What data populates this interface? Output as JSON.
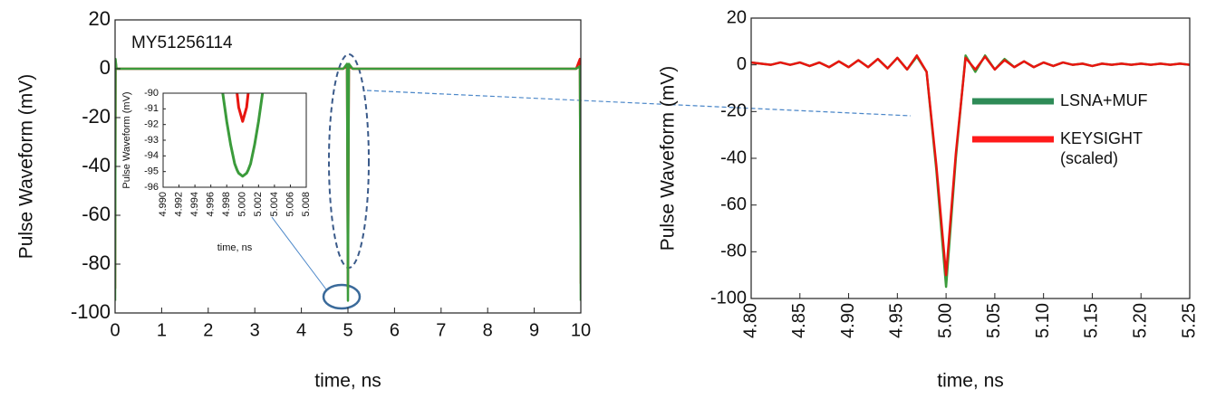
{
  "chart_data": [
    {
      "type": "line",
      "annotation": "MY51256114",
      "xlabel": "time, ns",
      "ylabel": "Pulse Waveform (mV)",
      "xlim": [
        0,
        10
      ],
      "ylim": [
        -100,
        20
      ],
      "xticks": [
        0,
        1,
        2,
        3,
        4,
        5,
        6,
        7,
        8,
        9,
        10
      ],
      "yticks": [
        -100,
        -80,
        -60,
        -40,
        -20,
        0,
        20
      ],
      "x": [
        0,
        0.01,
        0.03,
        0.1,
        2,
        4.9,
        4.98,
        5.0,
        5.02,
        5.1,
        8,
        9.9,
        9.98,
        10
      ],
      "series": [
        {
          "color": "#e8150f",
          "values": [
            -90,
            3,
            0,
            0,
            0,
            0,
            1,
            -90,
            1,
            0,
            0,
            0,
            4,
            -88
          ]
        },
        {
          "color": "#3b9b3b",
          "values": [
            -95,
            4,
            0,
            0,
            0,
            0,
            2,
            -95,
            2,
            0,
            0,
            0,
            1,
            -95
          ]
        }
      ]
    },
    {
      "type": "line",
      "xlabel": "time, ns",
      "ylabel": "Pulse Waveform (mV)",
      "xlim": [
        4.99,
        5.008
      ],
      "ylim": [
        -96,
        -90
      ],
      "xticks": [
        {
          "value": 4.99,
          "label": "4.990"
        },
        {
          "value": 4.992,
          "label": "4.992"
        },
        {
          "value": 4.994,
          "label": "4.994"
        },
        {
          "value": 4.996,
          "label": "4.996"
        },
        {
          "value": 4.998,
          "label": "4.998"
        },
        {
          "value": 5.0,
          "label": "5.000"
        },
        {
          "value": 5.002,
          "label": "5.002"
        },
        {
          "value": 5.004,
          "label": "5.004"
        },
        {
          "value": 5.006,
          "label": "5.006"
        },
        {
          "value": 5.008,
          "label": "5.008"
        }
      ],
      "yticks": [
        -96,
        -95,
        -94,
        -93,
        -92,
        -91,
        -90
      ],
      "x": [
        4.9975,
        4.998,
        4.9985,
        4.999,
        4.9993,
        4.9995,
        5.0,
        5.0005,
        5.0007,
        5.001,
        5.0015,
        5.002,
        5.0025
      ],
      "series": [
        {
          "color": "#e8150f",
          "values": [
            null,
            null,
            null,
            null,
            -90,
            -90.9,
            -91.8,
            -90.9,
            -90,
            null,
            null,
            null,
            null
          ]
        },
        {
          "color": "#3b9b3b",
          "values": [
            -90,
            -91.8,
            -93.3,
            -94.5,
            -94.9,
            -95.1,
            -95.3,
            -95.1,
            -94.9,
            -94.5,
            -93.3,
            -91.8,
            -90
          ]
        }
      ]
    },
    {
      "type": "line",
      "xlabel": "time, ns",
      "ylabel": "Pulse Waveform (mV)",
      "xlim": [
        4.8,
        5.25
      ],
      "ylim": [
        -100,
        20
      ],
      "legend": "right",
      "xticks": [
        {
          "value": 4.8,
          "label": "4.80"
        },
        {
          "value": 4.85,
          "label": "4.85"
        },
        {
          "value": 4.9,
          "label": "4.90"
        },
        {
          "value": 4.95,
          "label": "4.95"
        },
        {
          "value": 5.0,
          "label": "5.00"
        },
        {
          "value": 5.05,
          "label": "5.05"
        },
        {
          "value": 5.1,
          "label": "5.10"
        },
        {
          "value": 5.15,
          "label": "5.15"
        },
        {
          "value": 5.2,
          "label": "5.20"
        },
        {
          "value": 5.25,
          "label": "5.25"
        }
      ],
      "yticks": [
        -100,
        -80,
        -60,
        -40,
        -20,
        0,
        20
      ],
      "x": [
        4.8,
        4.81,
        4.82,
        4.83,
        4.84,
        4.85,
        4.86,
        4.87,
        4.88,
        4.89,
        4.9,
        4.91,
        4.92,
        4.93,
        4.94,
        4.95,
        4.96,
        4.97,
        4.98,
        4.99,
        5.0,
        5.01,
        5.02,
        5.03,
        5.04,
        5.05,
        5.06,
        5.07,
        5.08,
        5.09,
        5.1,
        5.11,
        5.12,
        5.13,
        5.14,
        5.15,
        5.16,
        5.17,
        5.18,
        5.19,
        5.2,
        5.21,
        5.22,
        5.23,
        5.24,
        5.25
      ],
      "series": [
        {
          "name": "LSNA+MUF",
          "color": "#3b9b3b",
          "legend_color": "#2e8b57",
          "values": [
            1,
            0.5,
            0,
            1,
            0,
            1,
            -0.5,
            1,
            -1,
            1.5,
            -1,
            2,
            -1,
            2.5,
            -1.5,
            3,
            -2,
            3.5,
            -3,
            -45,
            -95,
            -40,
            4,
            -3,
            4,
            -2,
            2.5,
            -1,
            1.5,
            -1,
            1,
            -0.5,
            1,
            0,
            0.5,
            -0.5,
            0.5,
            0,
            0.5,
            0,
            0.5,
            0,
            0.5,
            0,
            0.5,
            0
          ]
        },
        {
          "name": "KEYSIGHT (scaled)",
          "color": "#e8150f",
          "legend_color": "#ff1a1a",
          "values": [
            1,
            0.5,
            0,
            1,
            0,
            1,
            -0.5,
            1,
            -1,
            1.5,
            -1,
            2,
            -1,
            2.5,
            -1.5,
            3,
            -2,
            4,
            -3,
            -43,
            -90,
            -38,
            3,
            -2,
            3.5,
            -2,
            2,
            -1,
            1.5,
            -1,
            1,
            -0.5,
            1,
            0,
            0.5,
            -0.5,
            0.5,
            0,
            0.5,
            0,
            0.5,
            0,
            0.5,
            0,
            0.5,
            0
          ]
        }
      ]
    }
  ]
}
